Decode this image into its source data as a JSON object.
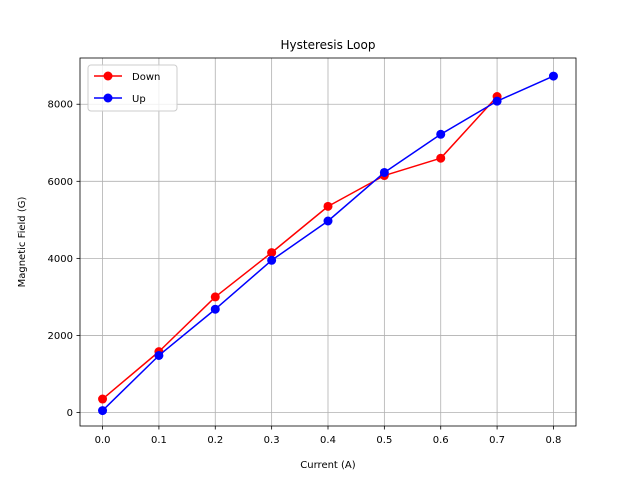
{
  "chart_data": {
    "type": "line",
    "title": "Hysteresis Loop",
    "xlabel": "Current (A)",
    "ylabel": "Magnetic Field (G)",
    "xlim": [
      -0.04,
      0.84
    ],
    "ylim": [
      -350,
      9200
    ],
    "xticks": [
      0.0,
      0.1,
      0.2,
      0.3,
      0.4,
      0.5,
      0.6,
      0.7,
      0.8
    ],
    "xtick_labels": [
      "0.0",
      "0.1",
      "0.2",
      "0.3",
      "0.4",
      "0.5",
      "0.6",
      "0.7",
      "0.8"
    ],
    "yticks": [
      0,
      2000,
      4000,
      6000,
      8000
    ],
    "ytick_labels": [
      "0",
      "2000",
      "4000",
      "6000",
      "8000"
    ],
    "grid": true,
    "legend_position": "top-left",
    "series": [
      {
        "name": "Down",
        "color": "#ff0000",
        "marker": "circle",
        "x": [
          0.0,
          0.1,
          0.2,
          0.3,
          0.4,
          0.5,
          0.6,
          0.7
        ],
        "y": [
          350,
          1580,
          3000,
          4150,
          5350,
          6150,
          6600,
          8200
        ]
      },
      {
        "name": "Up",
        "color": "#0000ff",
        "marker": "circle",
        "x": [
          0.0,
          0.1,
          0.2,
          0.3,
          0.4,
          0.5,
          0.6,
          0.7,
          0.8
        ],
        "y": [
          50,
          1480,
          2680,
          3950,
          4970,
          6230,
          7220,
          8080,
          8730
        ]
      }
    ]
  }
}
